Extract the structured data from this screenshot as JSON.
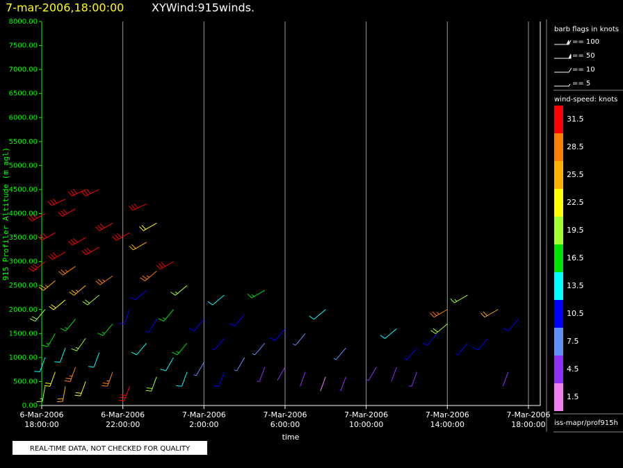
{
  "chart_data": {
    "type": "windbarb",
    "title": "7-mar-2006,18:00:00",
    "subtitle": "XYWind:915winds.",
    "y_label": "915 Profiler Altitude (m agl)",
    "x_label": "time",
    "note": "REAL-TIME DATA, NOT CHECKED FOR QUALITY",
    "source": "iss-mapr/prof915h",
    "barb_legend": {
      "title": "barb flags in knots",
      "entries": [
        "== 100",
        "== 50",
        "== 10",
        "== 5"
      ]
    },
    "color_legend": {
      "title": "wind-speed: knots",
      "levels": [
        31.5,
        28.5,
        25.5,
        22.5,
        19.5,
        16.5,
        13.5,
        10.5,
        7.5,
        4.5,
        1.5
      ],
      "colors": [
        "#ff0000",
        "#ff8000",
        "#ffb000",
        "#ffff00",
        "#a0ff30",
        "#00e000",
        "#00ffff",
        "#0000ff",
        "#6090ff",
        "#9030ff",
        "#f080f0"
      ]
    },
    "xlim": [
      "2006-03-06T18:00",
      "2006-03-07T18:35"
    ],
    "xticks": [
      {
        "value": "2006-03-06T18:00",
        "label": [
          "6-Mar-2006",
          "18:00:00"
        ]
      },
      {
        "value": "2006-03-06T22:00",
        "label": [
          "6-Mar-2006",
          "22:00:00"
        ]
      },
      {
        "value": "2006-03-07T02:00",
        "label": [
          "7-Mar-2006",
          "2:00:00"
        ]
      },
      {
        "value": "2006-03-07T06:00",
        "label": [
          "7-Mar-2006",
          "6:00:00"
        ]
      },
      {
        "value": "2006-03-07T10:00",
        "label": [
          "7-Mar-2006",
          "10:00:00"
        ]
      },
      {
        "value": "2006-03-07T14:00",
        "label": [
          "7-Mar-2006",
          "14:00:00"
        ]
      },
      {
        "value": "2006-03-07T18:00",
        "label": [
          "7-Mar-2006",
          "18:00:00"
        ]
      }
    ],
    "ylim": [
      0,
      8000
    ],
    "yticks": [
      {
        "value": 0,
        "label": "0.00"
      },
      {
        "value": 500,
        "label": "500.00"
      },
      {
        "value": 1000,
        "label": "1000.00"
      },
      {
        "value": 1500,
        "label": "1500.00"
      },
      {
        "value": 2000,
        "label": "2000.00"
      },
      {
        "value": 2500,
        "label": "2500.00"
      },
      {
        "value": 3000,
        "label": "3000.00"
      },
      {
        "value": 3500,
        "label": "3500.00"
      },
      {
        "value": 4000,
        "label": "4000.00"
      },
      {
        "value": 4500,
        "label": "4500.00"
      },
      {
        "value": 5000,
        "label": "5000.00"
      },
      {
        "value": 5500,
        "label": "5500.00"
      },
      {
        "value": 6000,
        "label": "6000.00"
      },
      {
        "value": 6500,
        "label": "6500.00"
      },
      {
        "value": 7000,
        "label": "7000.00"
      },
      {
        "value": 7500,
        "label": "7500.00"
      },
      {
        "value": 8000,
        "label": "8000.00"
      }
    ],
    "grid": true,
    "barbs": {
      "time": [
        "2006-03-06T18:10",
        "2006-03-06T18:10",
        "2006-03-06T18:10",
        "2006-03-06T18:10",
        "2006-03-06T18:10",
        "2006-03-06T18:40",
        "2006-03-06T18:40",
        "2006-03-06T18:40",
        "2006-03-06T18:40",
        "2006-03-06T19:10",
        "2006-03-06T19:10",
        "2006-03-06T19:10",
        "2006-03-06T19:10",
        "2006-03-06T19:10",
        "2006-03-06T19:40",
        "2006-03-06T19:40",
        "2006-03-06T19:40",
        "2006-03-06T19:40",
        "2006-03-06T20:10",
        "2006-03-06T20:10",
        "2006-03-06T20:10",
        "2006-03-06T20:10",
        "2006-03-06T20:10",
        "2006-03-06T20:50",
        "2006-03-06T20:50",
        "2006-03-06T20:50",
        "2006-03-06T20:50",
        "2006-03-06T21:30",
        "2006-03-06T21:30",
        "2006-03-06T21:30",
        "2006-03-06T21:30",
        "2006-03-06T22:20",
        "2006-03-06T22:20",
        "2006-03-06T22:20",
        "2006-03-06T23:10",
        "2006-03-06T23:10",
        "2006-03-06T23:10",
        "2006-03-06T23:10",
        "2006-03-06T23:40",
        "2006-03-06T23:40",
        "2006-03-06T23:40",
        "2006-03-06T23:40",
        "2006-03-07T00:30",
        "2006-03-07T00:30",
        "2006-03-07T00:30",
        "2006-03-07T01:10",
        "2006-03-07T01:10",
        "2006-03-07T01:10",
        "2006-03-07T02:00",
        "2006-03-07T02:00",
        "2006-03-07T03:00",
        "2006-03-07T03:00",
        "2006-03-07T03:00",
        "2006-03-07T04:00",
        "2006-03-07T04:00",
        "2006-03-07T05:00",
        "2006-03-07T05:00",
        "2006-03-07T05:00",
        "2006-03-07T06:00",
        "2006-03-07T06:00",
        "2006-03-07T07:00",
        "2006-03-07T07:00",
        "2006-03-07T08:00",
        "2006-03-07T08:00",
        "2006-03-07T09:00",
        "2006-03-07T09:00",
        "2006-03-07T10:30",
        "2006-03-07T11:30",
        "2006-03-07T11:30",
        "2006-03-07T12:30",
        "2006-03-07T12:30",
        "2006-03-07T13:30",
        "2006-03-07T14:00",
        "2006-03-07T14:00",
        "2006-03-07T15:00",
        "2006-03-07T15:00",
        "2006-03-07T16:00",
        "2006-03-07T16:30",
        "2006-03-07T17:00",
        "2006-03-07T17:30"
      ],
      "altitude": [
        4000,
        3000,
        2000,
        1000,
        400,
        3600,
        2600,
        1500,
        700,
        4300,
        3200,
        2200,
        1200,
        400,
        4100,
        2900,
        1800,
        800,
        4500,
        3500,
        2500,
        1400,
        500,
        4500,
        3300,
        2300,
        1100,
        3800,
        2700,
        1700,
        700,
        3600,
        2000,
        400,
        4200,
        3400,
        2400,
        1300,
        3800,
        2800,
        1800,
        600,
        3000,
        2000,
        1000,
        2500,
        1300,
        700,
        1800,
        900,
        2300,
        1400,
        700,
        1900,
        1000,
        2400,
        1300,
        800,
        1600,
        800,
        1500,
        700,
        2000,
        600,
        1200,
        600,
        800,
        1600,
        800,
        1200,
        700,
        1500,
        2000,
        1700,
        2300,
        1300,
        1400,
        2000,
        700,
        1800
      ],
      "speed": [
        31,
        30,
        20,
        14,
        18,
        31,
        26,
        17,
        23,
        31,
        31,
        22,
        12,
        24,
        30,
        29,
        15,
        27,
        31,
        32,
        25,
        19,
        21,
        31,
        31,
        20,
        14,
        31,
        28,
        16,
        27,
        31,
        11,
        30,
        31,
        24,
        10,
        13,
        22,
        28,
        9,
        20,
        31,
        17,
        14,
        18,
        15,
        12,
        11,
        8,
        14,
        9,
        10,
        10,
        6,
        17,
        8,
        5,
        10,
        4,
        7,
        3,
        13,
        2,
        6,
        4,
        5,
        14,
        4,
        9,
        5,
        10,
        28,
        20,
        18,
        9,
        10,
        24,
        4,
        11
      ],
      "direction": [
        240,
        230,
        220,
        200,
        190,
        240,
        230,
        210,
        200,
        245,
        240,
        230,
        200,
        190,
        240,
        235,
        220,
        200,
        245,
        240,
        230,
        215,
        200,
        245,
        240,
        230,
        200,
        240,
        235,
        220,
        200,
        240,
        200,
        200,
        245,
        240,
        230,
        220,
        240,
        230,
        210,
        200,
        240,
        220,
        210,
        230,
        220,
        200,
        220,
        210,
        230,
        220,
        200,
        220,
        210,
        240,
        220,
        200,
        220,
        210,
        220,
        200,
        230,
        200,
        220,
        200,
        210,
        230,
        200,
        220,
        200,
        220,
        240,
        230,
        240,
        220,
        220,
        240,
        200,
        220
      ]
    }
  }
}
